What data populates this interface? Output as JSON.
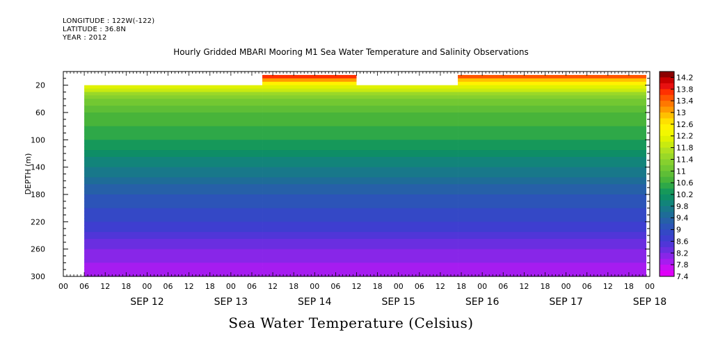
{
  "header": {
    "longitude": "LONGITUDE : 122W(-122)",
    "latitude": "LATITUDE : 36.8N",
    "year": "YEAR : 2012"
  },
  "chart_title": "Hourly Gridded MBARI Mooring M1 Sea Water Temperature and Salinity Observations",
  "variable_title": "Sea Water Temperature (Celsius)",
  "chart_data": {
    "type": "heatmap",
    "title": "Hourly Gridded MBARI Mooring M1 Sea Water Temperature and Salinity Observations",
    "xlabel": "",
    "ylabel": "DEPTH (m)",
    "y_range_m": [
      0,
      300
    ],
    "y_inverted": true,
    "y_ticks": [
      20,
      60,
      100,
      140,
      180,
      220,
      260,
      300
    ],
    "x_range_hours": [
      -12,
      156
    ],
    "x_hour_ticks": [
      "00",
      "06",
      "12",
      "18",
      "00",
      "06",
      "12",
      "18",
      "00",
      "06",
      "12",
      "18",
      "00",
      "06",
      "12",
      "18",
      "00",
      "06",
      "12",
      "18",
      "00",
      "06",
      "12",
      "18",
      "00",
      "06",
      "12",
      "18",
      "00",
      "06",
      "12",
      "18",
      "00",
      "06",
      "12",
      "18",
      "00",
      "06",
      "12",
      "18",
      "00",
      "06",
      "12",
      "18",
      "00",
      "06",
      "12",
      "18"
    ],
    "x_day_labels": [
      "SEP 12",
      "SEP 13",
      "SEP 14",
      "SEP 15",
      "SEP 16",
      "SEP 17",
      "SEP 18"
    ],
    "colorbar": {
      "labels": [
        "14.2",
        "13.8",
        "13.4",
        "13",
        "12.6",
        "12.2",
        "11.8",
        "11.4",
        "11",
        "10.6",
        "10.2",
        "9.8",
        "9.4",
        "9",
        "8.6",
        "8.2",
        "7.8",
        "7.4"
      ],
      "colors": [
        "#8b0000",
        "#c80000",
        "#e81010",
        "#ff3000",
        "#ff5500",
        "#ff7800",
        "#ff9a00",
        "#ffc000",
        "#ffe000",
        "#fff200",
        "#f2f800",
        "#e0f200",
        "#c8ea10",
        "#b0e020",
        "#9ad828",
        "#86d02e",
        "#72c832",
        "#5ebe36",
        "#48b43a",
        "#2ea848",
        "#16985a",
        "#0e8e66",
        "#12847a",
        "#18788a",
        "#1e6c98",
        "#2660a8",
        "#2c54b8",
        "#3448c6",
        "#3e3ed0",
        "#5036d8",
        "#6a2ee0",
        "#8826e8",
        "#a61cf0",
        "#c810f4",
        "#e000f8"
      ],
      "min": 7.4,
      "max": 14.4
    },
    "segments": [
      {
        "start_hour": -6,
        "end_hour": 45,
        "top_depth_m": 20,
        "surface_temp": 12.2
      },
      {
        "start_hour": 45,
        "end_hour": 72,
        "top_depth_m": 5,
        "surface_temp": 14.0
      },
      {
        "start_hour": 72,
        "end_hour": 101,
        "top_depth_m": 20,
        "surface_temp": 12.0
      },
      {
        "start_hour": 101,
        "end_hour": 155,
        "top_depth_m": 5,
        "surface_temp": 13.8
      }
    ],
    "depth_profile": [
      {
        "depth_m": 20,
        "temp": 12.2
      },
      {
        "depth_m": 40,
        "temp": 11.2
      },
      {
        "depth_m": 60,
        "temp": 10.8
      },
      {
        "depth_m": 100,
        "temp": 10.4
      },
      {
        "depth_m": 140,
        "temp": 9.8
      },
      {
        "depth_m": 180,
        "temp": 9.2
      },
      {
        "depth_m": 220,
        "temp": 8.8
      },
      {
        "depth_m": 260,
        "temp": 8.2
      },
      {
        "depth_m": 300,
        "temp": 7.8
      }
    ]
  }
}
